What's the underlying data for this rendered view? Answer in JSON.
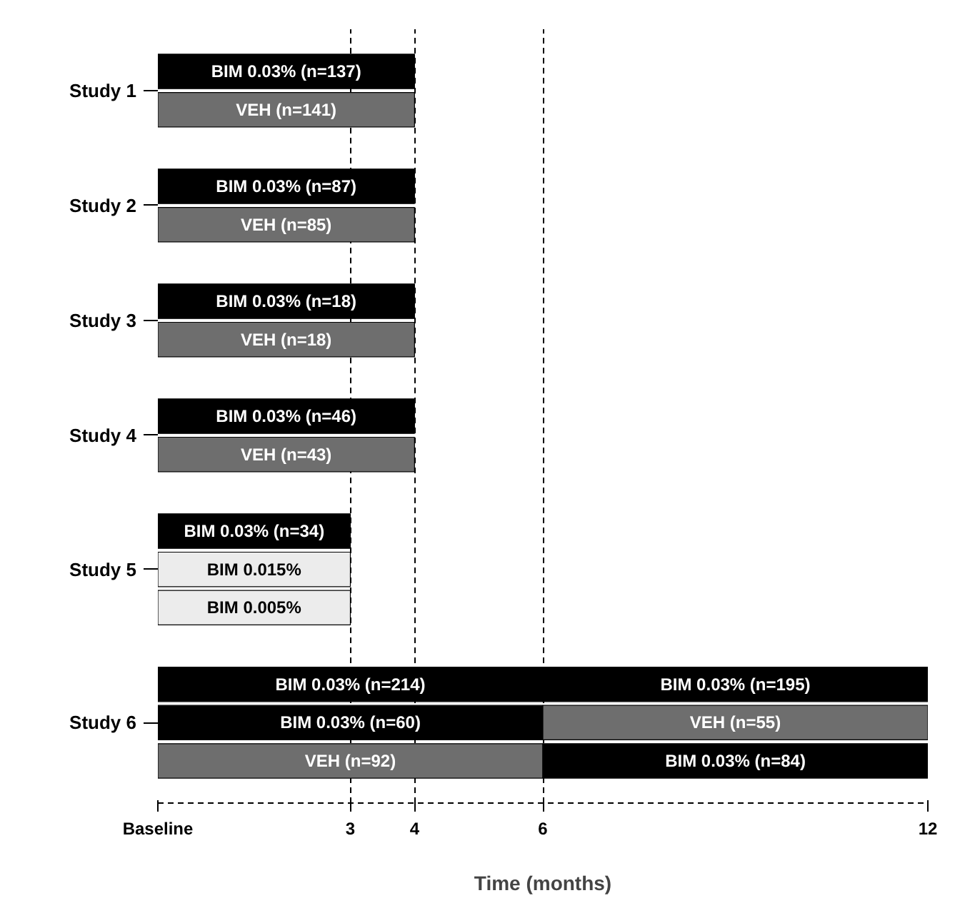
{
  "chart_data": {
    "type": "bar",
    "orientation": "horizontal",
    "xlabel": "Time (months)",
    "categories": [
      "Study 1",
      "Study 2",
      "Study 3",
      "Study 4",
      "Study 5",
      "Study 6"
    ],
    "xlim": [
      0,
      12
    ],
    "xticks": [
      {
        "value": 0,
        "label": "Baseline"
      },
      3,
      4,
      6,
      12
    ],
    "grid": "x",
    "series": [
      {
        "name": "BIM 0.03% (n=137)",
        "color": "#000000",
        "values": [
          4,
          null,
          null,
          null,
          null,
          null
        ],
        "base": [
          0,
          null,
          null,
          null,
          null,
          null
        ]
      },
      {
        "name": "VEH (n=141)",
        "color": "#6e6e6e",
        "values": [
          4,
          null,
          null,
          null,
          null,
          null
        ],
        "base": [
          0,
          null,
          null,
          null,
          null,
          null
        ]
      },
      {
        "name": "BIM 0.03% (n=87)",
        "color": "#000000",
        "values": [
          null,
          4,
          null,
          null,
          null,
          null
        ],
        "base": [
          null,
          0,
          null,
          null,
          null,
          null
        ]
      },
      {
        "name": "VEH (n=85)",
        "color": "#6e6e6e",
        "values": [
          null,
          4,
          null,
          null,
          null,
          null
        ],
        "base": [
          null,
          0,
          null,
          null,
          null,
          null
        ]
      },
      {
        "name": "BIM 0.03% (n=18)",
        "color": "#000000",
        "values": [
          null,
          null,
          4,
          null,
          null,
          null
        ],
        "base": [
          null,
          null,
          0,
          null,
          null,
          null
        ]
      },
      {
        "name": "VEH (n=18)",
        "color": "#6e6e6e",
        "values": [
          null,
          null,
          4,
          null,
          null,
          null
        ],
        "base": [
          null,
          null,
          0,
          null,
          null,
          null
        ]
      },
      {
        "name": "BIM 0.03% (n=46)",
        "color": "#000000",
        "values": [
          null,
          null,
          null,
          4,
          null,
          null
        ],
        "base": [
          null,
          null,
          null,
          0,
          null,
          null
        ]
      },
      {
        "name": "VEH (n=43)",
        "color": "#6e6e6e",
        "values": [
          null,
          null,
          null,
          4,
          null,
          null
        ],
        "base": [
          null,
          null,
          null,
          0,
          null,
          null
        ]
      },
      {
        "name": "BIM 0.03% (n=34)",
        "color": "#000000",
        "values": [
          null,
          null,
          null,
          null,
          3,
          null
        ],
        "base": [
          null,
          null,
          null,
          null,
          0,
          null
        ]
      },
      {
        "name": "BIM 0.015%",
        "color": "#ececec",
        "values": [
          null,
          null,
          null,
          null,
          3,
          null
        ],
        "base": [
          null,
          null,
          null,
          null,
          0,
          null
        ]
      },
      {
        "name": "BIM 0.005%",
        "color": "#ececec",
        "values": [
          null,
          null,
          null,
          null,
          3,
          null
        ],
        "base": [
          null,
          null,
          null,
          null,
          0,
          null
        ]
      },
      {
        "name": "BIM 0.03% (n=214)",
        "color": "#000000",
        "values": [
          null,
          null,
          null,
          null,
          null,
          6
        ],
        "base": [
          null,
          null,
          null,
          null,
          null,
          0
        ]
      },
      {
        "name": "BIM 0.03% (n=195)",
        "color": "#000000",
        "values": [
          null,
          null,
          null,
          null,
          null,
          6
        ],
        "base": [
          null,
          null,
          null,
          null,
          null,
          6
        ]
      },
      {
        "name": "BIM 0.03% (n=60)",
        "color": "#000000",
        "values": [
          null,
          null,
          null,
          null,
          null,
          6
        ],
        "base": [
          null,
          null,
          null,
          null,
          null,
          0
        ]
      },
      {
        "name": "VEH (n=55)",
        "color": "#6e6e6e",
        "values": [
          null,
          null,
          null,
          null,
          null,
          6
        ],
        "base": [
          null,
          null,
          null,
          null,
          null,
          6
        ]
      },
      {
        "name": "VEH (n=92)",
        "color": "#6e6e6e",
        "values": [
          null,
          null,
          null,
          null,
          null,
          6
        ],
        "base": [
          null,
          null,
          null,
          null,
          null,
          0
        ]
      },
      {
        "name": "BIM 0.03% (n=84)",
        "color": "#000000",
        "values": [
          null,
          null,
          null,
          null,
          null,
          6
        ],
        "base": [
          null,
          null,
          null,
          null,
          null,
          6
        ]
      }
    ]
  }
}
